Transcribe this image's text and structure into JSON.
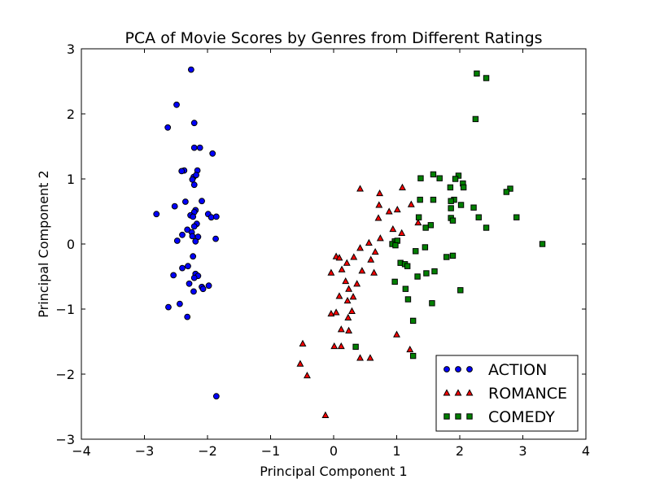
{
  "chart_data": {
    "type": "scatter",
    "title": "PCA of Movie Scores by Genres from Different Ratings",
    "xlabel": "Principal Component 1",
    "ylabel": "Principal Component 2",
    "xlim": [
      -4,
      4
    ],
    "ylim": [
      -3,
      3
    ],
    "xticks": [
      -4,
      -3,
      -2,
      -1,
      0,
      1,
      2,
      3,
      4
    ],
    "yticks": [
      -3,
      -2,
      -1,
      0,
      1,
      2,
      3
    ],
    "xtick_labels": [
      "−4",
      "−3",
      "−2",
      "−1",
      "0",
      "1",
      "2",
      "3",
      "4"
    ],
    "ytick_labels": [
      "−3",
      "−2",
      "−1",
      "0",
      "1",
      "2",
      "3"
    ],
    "grid": false,
    "legend_position": "lower-right",
    "series": [
      {
        "name": "ACTION",
        "marker": "circle",
        "color": "#0000ff",
        "points": [
          [
            -2.26,
            2.68
          ],
          [
            -2.49,
            2.14
          ],
          [
            -2.21,
            1.86
          ],
          [
            -2.63,
            1.79
          ],
          [
            -2.21,
            1.48
          ],
          [
            -2.12,
            1.48
          ],
          [
            -1.92,
            1.39
          ],
          [
            -2.16,
            1.13
          ],
          [
            -2.37,
            1.13
          ],
          [
            -2.41,
            1.12
          ],
          [
            -2.22,
            1.03
          ],
          [
            -2.18,
            1.06
          ],
          [
            -2.24,
            0.99
          ],
          [
            -2.21,
            0.91
          ],
          [
            -2.35,
            0.65
          ],
          [
            -2.09,
            0.66
          ],
          [
            -2.52,
            0.58
          ],
          [
            -2.19,
            0.52
          ],
          [
            -2.21,
            0.49
          ],
          [
            -1.99,
            0.46
          ],
          [
            -2.27,
            0.44
          ],
          [
            -2.81,
            0.46
          ],
          [
            -2.23,
            0.42
          ],
          [
            -1.94,
            0.41
          ],
          [
            -1.86,
            0.42
          ],
          [
            -2.17,
            0.31
          ],
          [
            -2.21,
            0.27
          ],
          [
            -2.32,
            0.22
          ],
          [
            -2.25,
            0.18
          ],
          [
            -2.4,
            0.14
          ],
          [
            -2.24,
            0.12
          ],
          [
            -2.15,
            0.11
          ],
          [
            -1.87,
            0.08
          ],
          [
            -2.48,
            0.05
          ],
          [
            -2.19,
            0.04
          ],
          [
            -2.23,
            -0.19
          ],
          [
            -2.4,
            -0.37
          ],
          [
            -2.31,
            -0.34
          ],
          [
            -2.54,
            -0.48
          ],
          [
            -2.19,
            -0.46
          ],
          [
            -2.15,
            -0.49
          ],
          [
            -2.21,
            -0.52
          ],
          [
            -2.29,
            -0.61
          ],
          [
            -2.09,
            -0.66
          ],
          [
            -1.98,
            -0.64
          ],
          [
            -2.07,
            -0.69
          ],
          [
            -2.22,
            -0.73
          ],
          [
            -2.62,
            -0.97
          ],
          [
            -2.44,
            -0.92
          ],
          [
            -2.32,
            -1.12
          ],
          [
            -1.86,
            -2.34
          ]
        ]
      },
      {
        "name": "ROMANCE",
        "marker": "triangle",
        "color": "#ff0000",
        "points": [
          [
            0.42,
            0.85
          ],
          [
            0.73,
            0.78
          ],
          [
            1.09,
            0.87
          ],
          [
            0.72,
            0.6
          ],
          [
            1.23,
            0.61
          ],
          [
            1.01,
            0.53
          ],
          [
            0.88,
            0.5
          ],
          [
            0.71,
            0.4
          ],
          [
            1.34,
            0.33
          ],
          [
            0.94,
            0.23
          ],
          [
            1.08,
            0.17
          ],
          [
            0.74,
            0.09
          ],
          [
            0.56,
            0.02
          ],
          [
            0.42,
            -0.06
          ],
          [
            0.66,
            -0.12
          ],
          [
            0.59,
            -0.24
          ],
          [
            0.04,
            -0.19
          ],
          [
            0.09,
            -0.21
          ],
          [
            0.32,
            -0.2
          ],
          [
            0.21,
            -0.29
          ],
          [
            -0.04,
            -0.44
          ],
          [
            0.13,
            -0.39
          ],
          [
            0.45,
            -0.41
          ],
          [
            0.64,
            -0.44
          ],
          [
            0.19,
            -0.57
          ],
          [
            0.37,
            -0.61
          ],
          [
            0.24,
            -0.69
          ],
          [
            0.09,
            -0.8
          ],
          [
            0.31,
            -0.81
          ],
          [
            0.22,
            -0.87
          ],
          [
            0.29,
            -1.03
          ],
          [
            0.04,
            -1.05
          ],
          [
            -0.04,
            -1.07
          ],
          [
            0.23,
            -1.13
          ],
          [
            0.12,
            -1.31
          ],
          [
            0.24,
            -1.33
          ],
          [
            1.0,
            -1.39
          ],
          [
            0.01,
            -1.57
          ],
          [
            0.12,
            -1.57
          ],
          [
            0.42,
            -1.75
          ],
          [
            0.58,
            -1.75
          ],
          [
            1.21,
            -1.62
          ],
          [
            -0.49,
            -1.53
          ],
          [
            -0.53,
            -1.84
          ],
          [
            -0.42,
            -2.02
          ],
          [
            -0.13,
            -2.63
          ]
        ]
      },
      {
        "name": "COMEDY",
        "marker": "square",
        "color": "#008000",
        "points": [
          [
            2.27,
            2.62
          ],
          [
            2.42,
            2.55
          ],
          [
            2.25,
            1.92
          ],
          [
            1.58,
            1.07
          ],
          [
            1.98,
            1.05
          ],
          [
            1.68,
            1.01
          ],
          [
            1.38,
            1.01
          ],
          [
            1.93,
            1.0
          ],
          [
            2.05,
            0.93
          ],
          [
            2.06,
            0.87
          ],
          [
            1.85,
            0.87
          ],
          [
            2.8,
            0.85
          ],
          [
            2.74,
            0.8
          ],
          [
            1.37,
            0.68
          ],
          [
            1.58,
            0.68
          ],
          [
            1.91,
            0.68
          ],
          [
            1.86,
            0.66
          ],
          [
            2.02,
            0.6
          ],
          [
            2.22,
            0.56
          ],
          [
            1.86,
            0.55
          ],
          [
            1.35,
            0.41
          ],
          [
            2.3,
            0.41
          ],
          [
            2.9,
            0.41
          ],
          [
            1.86,
            0.4
          ],
          [
            1.89,
            0.36
          ],
          [
            1.54,
            0.29
          ],
          [
            1.46,
            0.25
          ],
          [
            2.42,
            0.25
          ],
          [
            0.97,
            0.04
          ],
          [
            1.01,
            0.05
          ],
          [
            0.93,
            0.0
          ],
          [
            0.98,
            -0.02
          ],
          [
            3.31,
            0.0
          ],
          [
            1.45,
            -0.05
          ],
          [
            1.3,
            -0.11
          ],
          [
            1.89,
            -0.18
          ],
          [
            1.79,
            -0.2
          ],
          [
            1.06,
            -0.29
          ],
          [
            1.13,
            -0.31
          ],
          [
            1.17,
            -0.34
          ],
          [
            1.47,
            -0.45
          ],
          [
            1.6,
            -0.42
          ],
          [
            1.33,
            -0.5
          ],
          [
            0.97,
            -0.58
          ],
          [
            1.14,
            -0.69
          ],
          [
            2.01,
            -0.71
          ],
          [
            1.18,
            -0.85
          ],
          [
            1.56,
            -0.91
          ],
          [
            1.26,
            -1.18
          ],
          [
            0.35,
            -1.58
          ],
          [
            1.26,
            -1.72
          ]
        ]
      }
    ]
  }
}
